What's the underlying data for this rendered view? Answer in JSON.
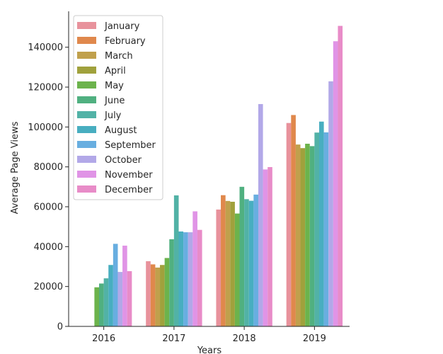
{
  "chart_data": {
    "type": "bar",
    "title": "",
    "xlabel": "Years",
    "ylabel": "Average Page Views",
    "categories": [
      "2016",
      "2017",
      "2018",
      "2019"
    ],
    "yticks": [
      0,
      20000,
      40000,
      60000,
      80000,
      100000,
      120000,
      140000
    ],
    "ylim": [
      0,
      158000
    ],
    "grid": false,
    "legend_position": "top-left",
    "series": [
      {
        "name": "January",
        "color": "#e8929c",
        "values": [
          null,
          32700,
          58600,
          102000
        ]
      },
      {
        "name": "February",
        "color": "#e0884c",
        "values": [
          null,
          31100,
          65800,
          106000
        ]
      },
      {
        "name": "March",
        "color": "#c0a04c",
        "values": [
          null,
          29500,
          62900,
          91200
        ]
      },
      {
        "name": "April",
        "color": "#a0a13c",
        "values": [
          null,
          30800,
          62500,
          89400
        ]
      },
      {
        "name": "May",
        "color": "#6cb34c",
        "values": [
          19600,
          34300,
          56600,
          91600
        ]
      },
      {
        "name": "June",
        "color": "#50b080",
        "values": [
          21500,
          43700,
          70000,
          90400
        ]
      },
      {
        "name": "July",
        "color": "#52b2a6",
        "values": [
          24100,
          65700,
          63800,
          97200
        ]
      },
      {
        "name": "August",
        "color": "#48aec0",
        "values": [
          30800,
          47600,
          63000,
          102700
        ]
      },
      {
        "name": "September",
        "color": "#68aee0",
        "values": [
          41400,
          47200,
          66100,
          97300
        ]
      },
      {
        "name": "October",
        "color": "#b2a8e8",
        "values": [
          27300,
          47200,
          111500,
          122900
        ]
      },
      {
        "name": "November",
        "color": "#e094e6",
        "values": [
          40500,
          57700,
          78700,
          143000
        ]
      },
      {
        "name": "December",
        "color": "#e88cc8",
        "values": [
          27700,
          48400,
          79900,
          150700
        ]
      }
    ]
  }
}
